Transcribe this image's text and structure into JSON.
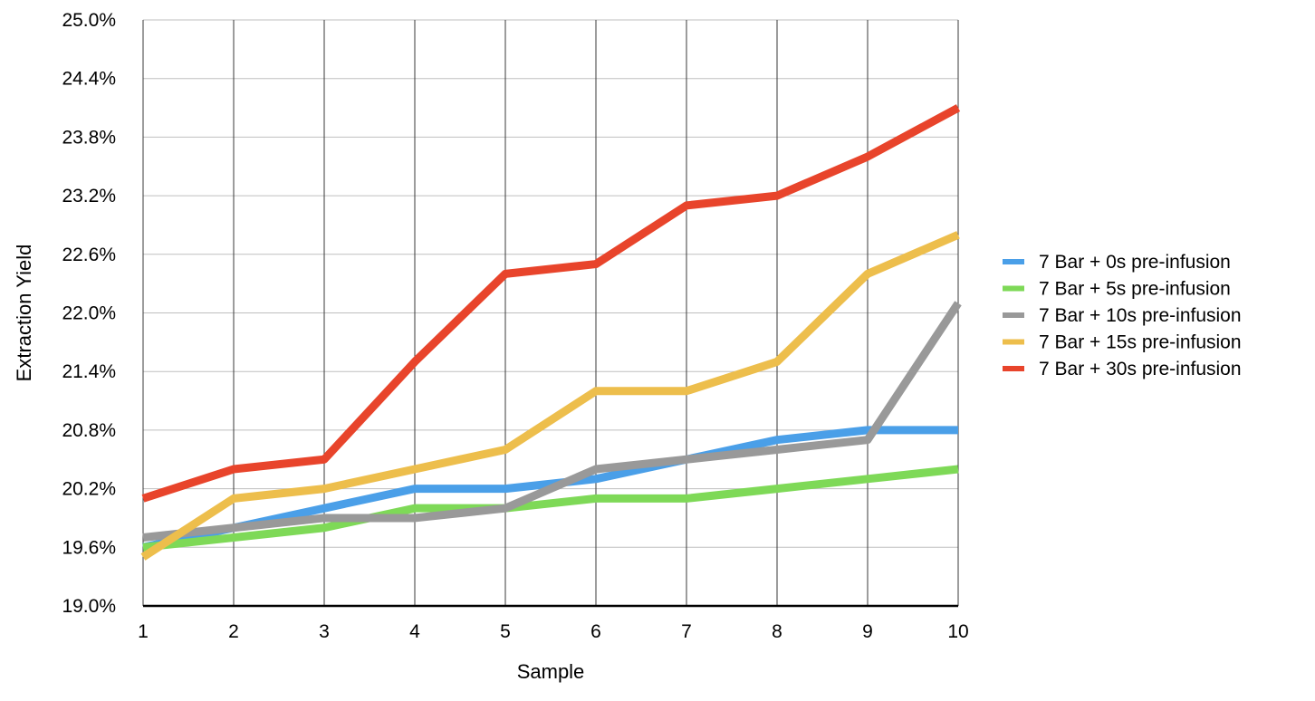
{
  "chart_data": {
    "type": "line",
    "title": "",
    "xlabel": "Sample",
    "ylabel": "Extraction Yield",
    "x": [
      1,
      2,
      3,
      4,
      5,
      6,
      7,
      8,
      9,
      10
    ],
    "x_tick_labels": [
      "1",
      "2",
      "3",
      "4",
      "5",
      "6",
      "7",
      "8",
      "9",
      "10"
    ],
    "ylim": [
      19.0,
      25.0
    ],
    "y_ticks": [
      19.0,
      19.6,
      20.2,
      20.8,
      21.4,
      22.0,
      22.6,
      23.2,
      23.8,
      24.4,
      25.0
    ],
    "y_tick_labels": [
      "19.0%",
      "19.6%",
      "20.2%",
      "20.8%",
      "21.4%",
      "22.0%",
      "22.6%",
      "23.2%",
      "23.8%",
      "24.4%",
      "25.0%"
    ],
    "grid": true,
    "legend_position": "right",
    "series": [
      {
        "name": "7 Bar + 0s pre-infusion",
        "color": "#4A9FE8",
        "values": [
          19.6,
          19.8,
          20.0,
          20.2,
          20.2,
          20.3,
          20.5,
          20.7,
          20.8,
          20.8
        ]
      },
      {
        "name": "7 Bar + 5s pre-infusion",
        "color": "#7ED957",
        "values": [
          19.6,
          19.7,
          19.8,
          20.0,
          20.0,
          20.1,
          20.1,
          20.2,
          20.3,
          20.4
        ]
      },
      {
        "name": "7 Bar + 10s pre-infusion",
        "color": "#999999",
        "values": [
          19.7,
          19.8,
          19.9,
          19.9,
          20.0,
          20.4,
          20.5,
          20.6,
          20.7,
          22.1
        ]
      },
      {
        "name": "7 Bar + 15s pre-infusion",
        "color": "#EDBE4C",
        "values": [
          19.5,
          20.1,
          20.2,
          20.4,
          20.6,
          21.2,
          21.2,
          21.5,
          22.4,
          22.8
        ]
      },
      {
        "name": "7 Bar + 30s pre-infusion",
        "color": "#E8442B",
        "values": [
          20.1,
          20.4,
          20.5,
          21.5,
          22.4,
          22.5,
          23.1,
          23.2,
          23.6,
          24.1
        ]
      }
    ]
  }
}
